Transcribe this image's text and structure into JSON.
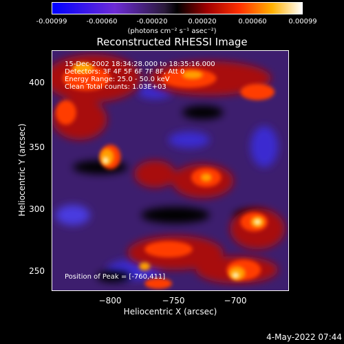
{
  "colorbar": {
    "ticks": [
      "-0.00099",
      "-0.00060",
      "-0.00020",
      "0.00020",
      "0.00060",
      "0.00099"
    ],
    "unit": "(photons cm⁻² s⁻¹ asec⁻²)"
  },
  "title": "Reconstructed RHESSI Image",
  "info": {
    "time": "15-Dec-2002 18:34:28.000 to 18:35:16.000",
    "detectors": "Detectors: 3F 4F 5F 6F 7F 8F, Att 0",
    "energy": "Energy Range: 25.0 - 50.0 keV",
    "clean": "Clean     Total counts: 1.03E+03",
    "peak": "Position of Peak = [-760,411]"
  },
  "axes": {
    "x_label": "Heliocentric X (arcsec)",
    "y_label": "Heliocentric Y (arcsec)",
    "x_ticks": [
      "−800",
      "−750",
      "−700"
    ],
    "y_ticks": [
      "400",
      "350",
      "300",
      "250"
    ]
  },
  "timestamp": "4-May-2022 07:44"
}
